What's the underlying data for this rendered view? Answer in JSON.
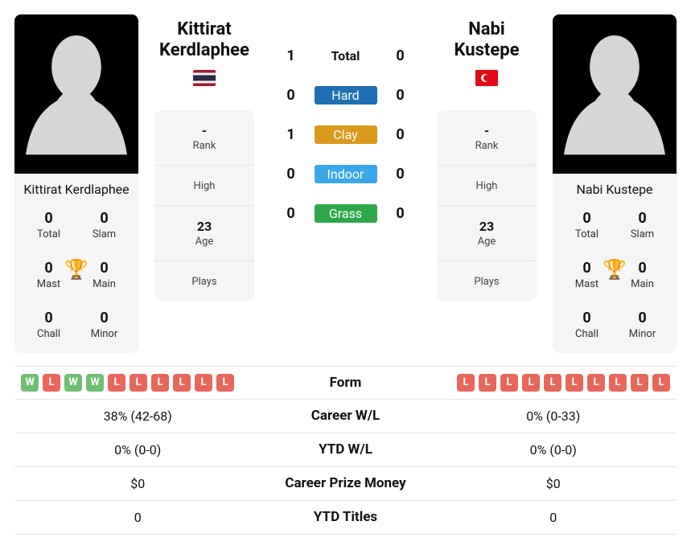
{
  "colors": {
    "hard": "#1f6fb2",
    "clay": "#d99a1c",
    "indoor": "#3ba7e8",
    "grass": "#2fa84a",
    "win": "#6fbf73",
    "loss": "#e8675a",
    "trophy": "#5b8cc9",
    "card_bg": "#f5f5f5",
    "divider": "#e5e5e5"
  },
  "player1": {
    "name": "Kittirat Kerdlaphee",
    "flag": "th",
    "rank": "-",
    "high": "",
    "age": "23",
    "plays": "",
    "titles": {
      "total": "0",
      "slam": "0",
      "mast": "0",
      "main": "0",
      "chall": "0",
      "minor": "0"
    },
    "form": [
      "W",
      "L",
      "W",
      "W",
      "L",
      "L",
      "L",
      "L",
      "L",
      "L"
    ]
  },
  "player2": {
    "name": "Nabi Kustepe",
    "flag": "tr",
    "rank": "-",
    "high": "",
    "age": "23",
    "plays": "",
    "titles": {
      "total": "0",
      "slam": "0",
      "mast": "0",
      "main": "0",
      "chall": "0",
      "minor": "0"
    },
    "form": [
      "L",
      "L",
      "L",
      "L",
      "L",
      "L",
      "L",
      "L",
      "L",
      "L"
    ]
  },
  "title_labels": {
    "total": "Total",
    "slam": "Slam",
    "mast": "Mast",
    "main": "Main",
    "chall": "Chall",
    "minor": "Minor"
  },
  "info_labels": {
    "rank": "Rank",
    "high": "High",
    "age": "Age",
    "plays": "Plays"
  },
  "h2h": {
    "total_label": "Total",
    "surfaces": [
      "Hard",
      "Clay",
      "Indoor",
      "Grass"
    ],
    "p1": {
      "total": "1",
      "hard": "0",
      "clay": "1",
      "indoor": "0",
      "grass": "0"
    },
    "p2": {
      "total": "0",
      "hard": "0",
      "clay": "0",
      "indoor": "0",
      "grass": "0"
    }
  },
  "compare_labels": {
    "form": "Form",
    "career_wl": "Career W/L",
    "ytd_wl": "YTD W/L",
    "career_prize": "Career Prize Money",
    "ytd_titles": "YTD Titles"
  },
  "compare": {
    "career_wl": {
      "p1": "38% (42-68)",
      "p2": "0% (0-33)"
    },
    "ytd_wl": {
      "p1": "0% (0-0)",
      "p2": "0% (0-0)"
    },
    "career_prize": {
      "p1": "$0",
      "p2": "$0"
    },
    "ytd_titles": {
      "p1": "0",
      "p2": "0"
    }
  }
}
